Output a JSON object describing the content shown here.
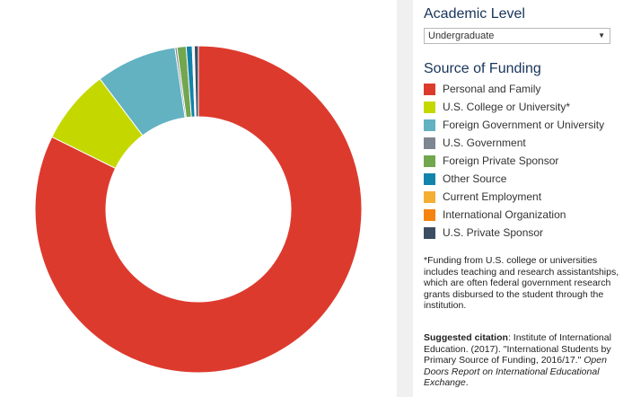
{
  "academic_level": {
    "title": "Academic Level",
    "selected": "Undergraduate"
  },
  "source_of_funding": {
    "title": "Source of Funding"
  },
  "chart_data": {
    "type": "pie",
    "donut": true,
    "categories": [
      "Personal and Family",
      "U.S. College or University*",
      "Foreign Government or University",
      "U.S. Government",
      "Foreign Private Sponsor",
      "Other Source",
      "Current Employment",
      "International Organization",
      "U.S. Private Sponsor"
    ],
    "values": [
      82.3,
      7.4,
      8.0,
      0.2,
      0.9,
      0.6,
      0.1,
      0.1,
      0.4
    ],
    "colors": [
      "#dd3a2e",
      "#c4d800",
      "#62b2c1",
      "#7d8691",
      "#72a64f",
      "#1283ab",
      "#f5ae34",
      "#f5830f",
      "#3b4d61"
    ],
    "legend": "right"
  },
  "footnote": "*Funding from U.S. college or universities includes teaching and research assistantships, which are often federal government research grants disbursed to the student through the institution.",
  "citation": {
    "label": "Suggested citation",
    "text": ": Institute of International Education. (2017). \"International Students by Primary Source of Funding, 2016/17.\" ",
    "source": "Open Doors Report on International Educational Exchange",
    "end": "."
  }
}
